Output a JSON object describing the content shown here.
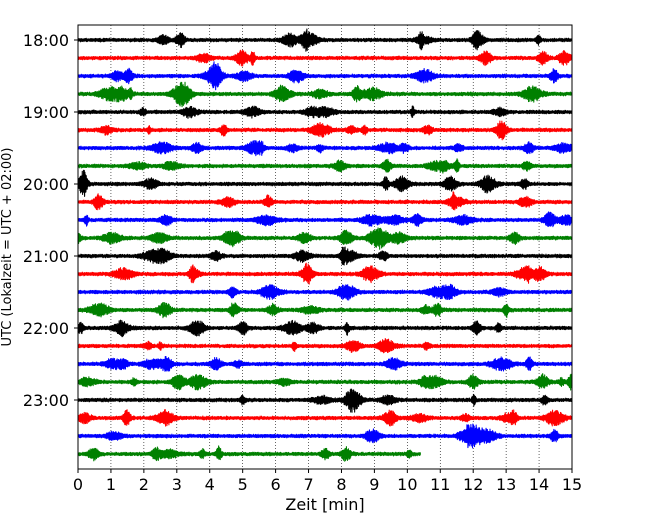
{
  "chart_data": {
    "type": "line",
    "title": "",
    "xlabel": "Zeit  [min]",
    "ylabel": "UTC (Lokalzeit = UTC + 02:00)",
    "xlim": [
      0,
      15
    ],
    "x_ticks": [
      0,
      1,
      2,
      3,
      4,
      5,
      6,
      7,
      8,
      9,
      10,
      11,
      12,
      13,
      14,
      15
    ],
    "y_tick_labels": [
      "18:00",
      "19:00",
      "20:00",
      "21:00",
      "22:00",
      "23:00"
    ],
    "grid": "vertical dotted",
    "trace_colors": [
      "#000000",
      "#ff0000",
      "#0000ff",
      "#008000"
    ],
    "series": [
      {
        "start": "18:00",
        "color": "#000000",
        "x_end": 15
      },
      {
        "start": "18:15",
        "color": "#ff0000",
        "x_end": 15
      },
      {
        "start": "18:30",
        "color": "#0000ff",
        "x_end": 15
      },
      {
        "start": "18:45",
        "color": "#008000",
        "x_end": 15
      },
      {
        "start": "19:00",
        "color": "#000000",
        "x_end": 15
      },
      {
        "start": "19:15",
        "color": "#ff0000",
        "x_end": 15
      },
      {
        "start": "19:30",
        "color": "#0000ff",
        "x_end": 15
      },
      {
        "start": "19:45",
        "color": "#008000",
        "x_end": 15
      },
      {
        "start": "20:00",
        "color": "#000000",
        "x_end": 15
      },
      {
        "start": "20:15",
        "color": "#ff0000",
        "x_end": 15
      },
      {
        "start": "20:30",
        "color": "#0000ff",
        "x_end": 15
      },
      {
        "start": "20:45",
        "color": "#008000",
        "x_end": 15
      },
      {
        "start": "21:00",
        "color": "#000000",
        "x_end": 15
      },
      {
        "start": "21:15",
        "color": "#ff0000",
        "x_end": 15
      },
      {
        "start": "21:30",
        "color": "#0000ff",
        "x_end": 15
      },
      {
        "start": "21:45",
        "color": "#008000",
        "x_end": 15
      },
      {
        "start": "22:00",
        "color": "#000000",
        "x_end": 15
      },
      {
        "start": "22:15",
        "color": "#ff0000",
        "x_end": 15
      },
      {
        "start": "22:30",
        "color": "#0000ff",
        "x_end": 15
      },
      {
        "start": "22:45",
        "color": "#008000",
        "x_end": 15
      },
      {
        "start": "23:00",
        "color": "#000000",
        "x_end": 15
      },
      {
        "start": "23:15",
        "color": "#ff0000",
        "x_end": 15
      },
      {
        "start": "23:30",
        "color": "#0000ff",
        "x_end": 15
      },
      {
        "start": "23:45",
        "color": "#008000",
        "x_end": 10.4
      }
    ]
  }
}
